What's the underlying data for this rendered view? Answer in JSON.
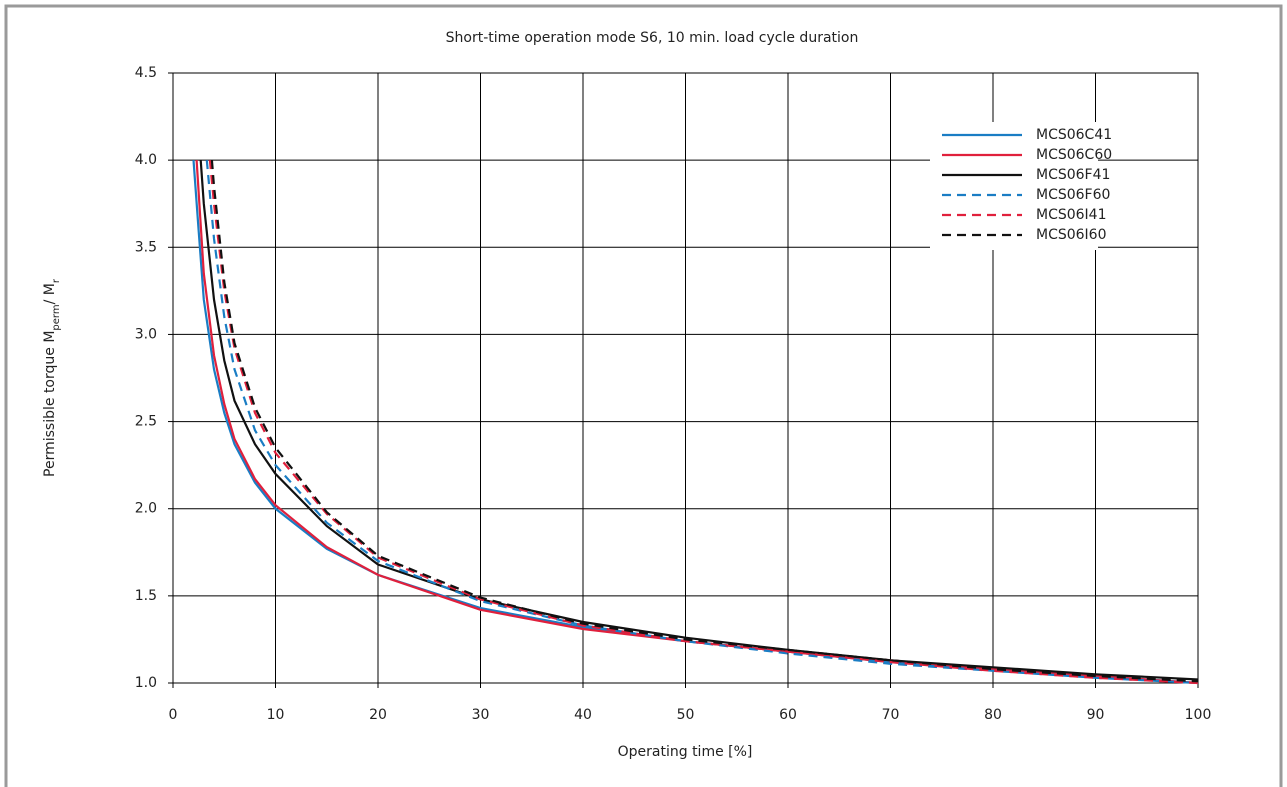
{
  "chart_data": {
    "type": "line",
    "title": "Short-time operation mode S6, 10 min. load cycle duration",
    "x_label": "Operating time [%]",
    "y_label": [
      "Permissible torque M",
      "perm",
      "/ M",
      "r"
    ],
    "xlim": [
      0,
      100
    ],
    "xticks": [
      0,
      10,
      20,
      30,
      40,
      50,
      60,
      70,
      80,
      90,
      100
    ],
    "ylim": [
      1,
      4.5
    ],
    "yticks": [
      {
        "value": 1,
        "label": "1.0"
      },
      1.5,
      {
        "value": 2,
        "label": "2.0"
      },
      2.5,
      {
        "value": 3,
        "label": "3.0"
      },
      3.5,
      {
        "value": 4,
        "label": "4.0"
      },
      4.5
    ],
    "grid": true,
    "legend": "upper right",
    "series": [
      {
        "name": "MCS06C41",
        "color": "#1a7dc4",
        "dashed": false,
        "x": [
          2,
          2.5,
          3,
          4,
          5,
          6,
          8,
          10,
          15,
          20,
          30,
          40,
          50,
          60,
          70,
          80,
          90,
          100
        ],
        "values": [
          4.0,
          3.6,
          3.2,
          2.8,
          2.55,
          2.37,
          2.15,
          2.0,
          1.77,
          1.62,
          1.43,
          1.32,
          1.24,
          1.18,
          1.12,
          1.08,
          1.04,
          1.0
        ]
      },
      {
        "name": "MCS06C60",
        "color": "#e0203c",
        "dashed": false,
        "x": [
          2.3,
          3,
          4,
          5,
          6,
          8,
          10,
          15,
          20,
          30,
          40,
          50,
          60,
          70,
          80,
          90,
          100
        ],
        "values": [
          4.0,
          3.35,
          2.88,
          2.6,
          2.4,
          2.17,
          2.02,
          1.78,
          1.62,
          1.42,
          1.31,
          1.24,
          1.18,
          1.13,
          1.08,
          1.04,
          1.0
        ]
      },
      {
        "name": "MCS06F41",
        "color": "#111111",
        "dashed": false,
        "x": [
          2.7,
          3,
          4,
          5,
          6,
          8,
          10,
          15,
          20,
          30,
          40,
          50,
          60,
          70,
          80,
          90,
          100
        ],
        "values": [
          4.0,
          3.75,
          3.2,
          2.85,
          2.62,
          2.37,
          2.2,
          1.9,
          1.68,
          1.48,
          1.35,
          1.26,
          1.19,
          1.13,
          1.09,
          1.05,
          1.02
        ]
      },
      {
        "name": "MCS06F60",
        "color": "#1a7dc4",
        "dashed": true,
        "x": [
          3.3,
          4,
          5,
          6,
          8,
          10,
          15,
          20,
          30,
          40,
          50,
          60,
          70,
          80,
          90,
          100
        ],
        "values": [
          4.0,
          3.55,
          3.1,
          2.8,
          2.45,
          2.25,
          1.92,
          1.7,
          1.47,
          1.33,
          1.24,
          1.17,
          1.11,
          1.07,
          1.03,
          1.0
        ]
      },
      {
        "name": "MCS06I41",
        "color": "#e0203c",
        "dashed": true,
        "x": [
          3.6,
          4,
          5,
          6,
          8,
          10,
          15,
          20,
          30,
          40,
          50,
          60,
          70,
          80,
          90,
          100
        ],
        "values": [
          4.0,
          3.75,
          3.25,
          2.92,
          2.55,
          2.32,
          1.97,
          1.72,
          1.48,
          1.33,
          1.24,
          1.18,
          1.12,
          1.07,
          1.03,
          1.0
        ]
      },
      {
        "name": "MCS06I60",
        "color": "#111111",
        "dashed": true,
        "x": [
          3.8,
          4,
          5,
          6,
          8,
          10,
          15,
          20,
          30,
          40,
          50,
          60,
          70,
          80,
          90,
          100
        ],
        "values": [
          4.0,
          3.85,
          3.3,
          2.95,
          2.58,
          2.35,
          1.98,
          1.73,
          1.49,
          1.34,
          1.25,
          1.19,
          1.13,
          1.08,
          1.04,
          1.01
        ]
      }
    ]
  }
}
